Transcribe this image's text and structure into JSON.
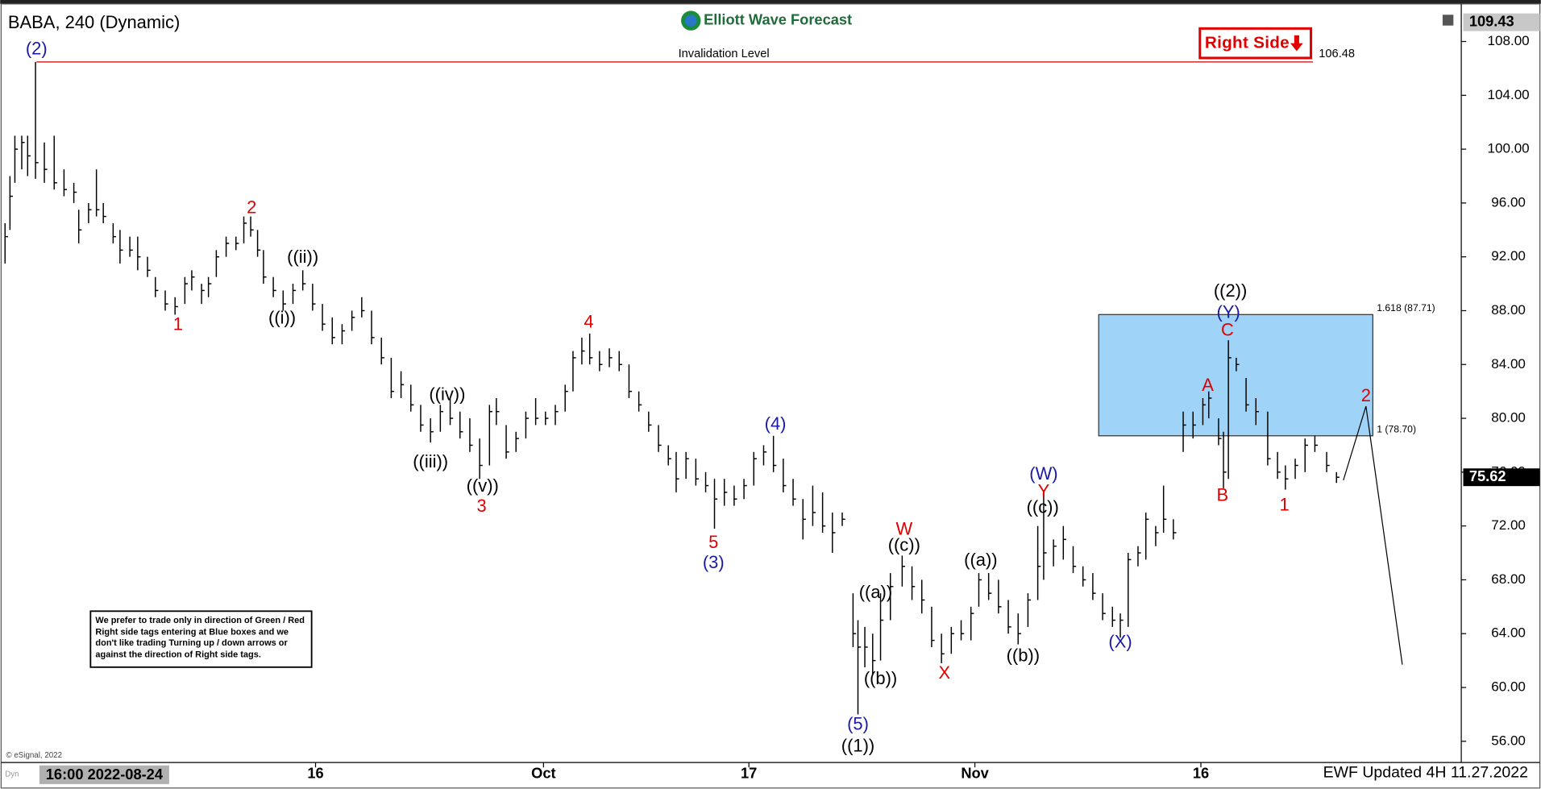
{
  "header": {
    "symbol_title": "BABA, 240 (Dynamic)",
    "brand": "Elliott Wave Forecast",
    "tag": "Right Side"
  },
  "chart_data": {
    "type": "ohlc",
    "color": "#000000",
    "xlim": [
      0,
      297.4
    ],
    "ylim": [
      54.5,
      110.5
    ],
    "xticks": [
      {
        "value": 64.2,
        "label": "16"
      },
      {
        "value": 110.6,
        "label": "Oct"
      },
      {
        "value": 152.4,
        "label": "17"
      },
      {
        "value": 198.4,
        "label": "Nov"
      },
      {
        "value": 244.4,
        "label": "16"
      }
    ],
    "yticks": [
      {
        "value": 56,
        "label": "56.00"
      },
      {
        "value": 60,
        "label": "60.00"
      },
      {
        "value": 64,
        "label": "64.00"
      },
      {
        "value": 68,
        "label": "68.00"
      },
      {
        "value": 72,
        "label": "72.00"
      },
      {
        "value": 76,
        "label": "76.00"
      },
      {
        "value": 80,
        "label": "80.00"
      },
      {
        "value": 84,
        "label": "84.00"
      },
      {
        "value": 88,
        "label": "88.00"
      },
      {
        "value": 92,
        "label": "92.00"
      },
      {
        "value": 96,
        "label": "96.00"
      },
      {
        "value": 100,
        "label": "100.00"
      },
      {
        "value": 104,
        "label": "104.00"
      },
      {
        "value": 108,
        "label": "108.00"
      }
    ],
    "x": [
      1,
      2,
      3,
      4.4,
      5.6,
      7.2,
      9,
      11,
      13,
      15,
      16,
      18,
      19.6,
      21,
      23,
      24.4,
      26.4,
      28,
      30,
      31.6,
      33.6,
      35.6,
      37.6,
      39,
      41,
      42.4,
      44,
      46,
      48,
      49.6,
      51,
      52.4,
      53.6,
      55.6,
      57.6,
      59.6,
      61.6,
      63.6,
      65.6,
      67.6,
      69.6,
      71.6,
      73.6,
      75.6,
      77.6,
      79.6,
      81.6,
      83.6,
      85.6,
      87.6,
      89.6,
      91.6,
      93.6,
      95.6,
      97.6,
      99.6,
      101,
      103,
      105,
      107,
      109,
      111,
      113,
      115,
      116.6,
      118.4,
      120,
      122,
      124,
      126,
      128,
      130,
      132,
      134,
      136,
      137.6,
      139.6,
      141.6,
      143.6,
      145.4,
      147.4,
      149.4,
      151.4,
      153.4,
      155.4,
      157.4,
      159.4,
      161.4,
      163.4,
      165.4,
      167.4,
      169.4,
      171.4,
      173.6,
      174.6,
      176,
      177.6,
      179.2,
      181.2,
      183.6,
      185.6,
      187.6,
      189.6,
      191.6,
      193.6,
      195.6,
      197.6,
      199.2,
      201.2,
      203.2,
      205.2,
      207.2,
      209.2,
      211.2,
      212.4,
      214.4,
      216.4,
      218.4,
      220.4,
      222.4,
      224.4,
      226.4,
      228,
      229.6,
      231.6,
      233.2,
      235.2,
      236.8,
      238.8,
      240.8,
      242.8,
      244.8,
      246,
      248,
      249,
      250,
      251.6,
      253.6,
      255.6,
      258,
      260,
      261.6,
      263.6,
      265.6,
      267.6,
      270,
      272
    ],
    "high": [
      94.5,
      98,
      101,
      101,
      101,
      106.48,
      100.5,
      101,
      98.5,
      97.5,
      95.5,
      96,
      98.5,
      96,
      94.5,
      94,
      93.5,
      93.5,
      92,
      90.5,
      89.5,
      89,
      90.5,
      91,
      90,
      90.5,
      92.5,
      93.5,
      93.5,
      95,
      95,
      94,
      92.5,
      90.5,
      89.5,
      90,
      91,
      90,
      88.5,
      87.5,
      87,
      88,
      89,
      88,
      86,
      84.5,
      83.5,
      82.5,
      81,
      80,
      81,
      81.5,
      80.5,
      80,
      78.5,
      81,
      81.5,
      79.5,
      79,
      80.5,
      81.5,
      80.5,
      81,
      82.5,
      85,
      86,
      86.3,
      85,
      85.2,
      85,
      84,
      82,
      80.5,
      79.5,
      78,
      77.5,
      77.5,
      77,
      76,
      75.5,
      75.5,
      75,
      75.5,
      77.5,
      78,
      78.7,
      77,
      75.5,
      74,
      75,
      74.5,
      73,
      73,
      67,
      65,
      64.5,
      64,
      67,
      68.5,
      69.8,
      69,
      68,
      66,
      64,
      64.5,
      65,
      66,
      68.5,
      68.5,
      68,
      66.5,
      65.5,
      67,
      72,
      74.5,
      71,
      72,
      70.5,
      69,
      68.5,
      67,
      66,
      65.5,
      70,
      70.5,
      73,
      72,
      75,
      72.5,
      80.5,
      80.5,
      81.5,
      82,
      80,
      79,
      85.8,
      84.5,
      83,
      81.5,
      80.5,
      77.5,
      76.5,
      77,
      78.5,
      78.7,
      77.5,
      76
    ],
    "low": [
      91.5,
      94,
      97.5,
      98.5,
      98,
      97.8,
      97.5,
      97,
      96.5,
      96,
      93,
      94.5,
      95,
      94.5,
      93,
      91.5,
      92,
      91,
      90.5,
      89,
      88,
      87.7,
      88.5,
      89.5,
      88.5,
      89,
      90.5,
      92,
      92.5,
      93,
      93.5,
      92,
      90,
      89,
      88,
      88.5,
      89.5,
      88,
      86.5,
      85.5,
      85.5,
      86.5,
      87.5,
      85.5,
      84,
      81.5,
      81.5,
      80.5,
      79,
      78.2,
      79,
      79.5,
      78.5,
      77.5,
      75.5,
      76.5,
      79.5,
      77,
      77.5,
      78.5,
      79.5,
      79.5,
      79.5,
      80.5,
      82,
      84,
      84,
      83.5,
      83.8,
      83.5,
      81.5,
      80.5,
      79,
      77.5,
      76.5,
      74.5,
      75.5,
      75,
      74.5,
      71.8,
      73.5,
      73.5,
      74,
      75,
      76.5,
      76,
      74.5,
      73.5,
      71,
      72,
      71.5,
      70,
      72,
      63,
      58,
      61.5,
      61,
      62,
      65,
      67.5,
      66.5,
      65.5,
      63,
      61.8,
      62.5,
      63.5,
      63.5,
      66,
      66.5,
      65.5,
      64,
      63.2,
      64.5,
      66.5,
      68,
      69,
      69.5,
      68.5,
      67.5,
      66.5,
      65,
      64.5,
      63.7,
      64.5,
      69,
      69.5,
      70.5,
      71.5,
      71,
      77.5,
      78.5,
      79.5,
      80,
      78,
      74.8,
      75.5,
      83.5,
      80.5,
      79.5,
      76.5,
      75.5,
      74.7,
      75.5,
      76,
      77.5,
      76,
      75.2
    ],
    "close": [
      93.5,
      96.5,
      100,
      100.5,
      99.5,
      99,
      98.5,
      97.5,
      97,
      96.8,
      94,
      95.5,
      95.5,
      95,
      93.5,
      92.5,
      92.5,
      92,
      91,
      89.5,
      88.5,
      88.3,
      90,
      90.5,
      89.5,
      90,
      92,
      93,
      93,
      94.5,
      94,
      92.5,
      90.5,
      89.5,
      88.5,
      89.5,
      90,
      88.5,
      87,
      86,
      86.5,
      87.5,
      88,
      86,
      84.5,
      82,
      82.5,
      81,
      79.5,
      79,
      80.5,
      80,
      79,
      78,
      76.5,
      80.5,
      80.5,
      77.5,
      78.5,
      80,
      80,
      80,
      80.5,
      82,
      84.5,
      85,
      84.5,
      84,
      84.5,
      84,
      82,
      81,
      79.5,
      78,
      77,
      75.5,
      77,
      75.5,
      75,
      74,
      74.5,
      74,
      75,
      77,
      77.5,
      76.5,
      75,
      74,
      72.5,
      73,
      72,
      71.5,
      72.5,
      64,
      63,
      63,
      62,
      65,
      67.5,
      69,
      67.5,
      66.5,
      63.5,
      62.5,
      64,
      64,
      65.5,
      68,
      67,
      66,
      64.5,
      64,
      66.5,
      69,
      70,
      70.5,
      71,
      69,
      68,
      67,
      65.5,
      65,
      65,
      69.5,
      70,
      72.5,
      71.5,
      72.5,
      71.5,
      79.5,
      79.5,
      81,
      81.5,
      78.5,
      76,
      84.5,
      84,
      81,
      80.5,
      77,
      76,
      75.5,
      76.5,
      78,
      78,
      76.5,
      75.62
    ],
    "last_price": 75.62,
    "top_price": 109.43,
    "invalidation": {
      "label": "Invalidation Level",
      "value": 106.48,
      "x": [
        7.4,
        267.2
      ],
      "color": "#cc0000"
    },
    "zone": {
      "x": [
        223.6,
        279.4
      ],
      "top": 87.71,
      "bottom": 78.7,
      "top_label": "1.618 (87.71)",
      "bottom_label": "1 (78.70)",
      "color": "#9fd3f7"
    },
    "projection": {
      "x": [
        273.4,
        278,
        285.4
      ],
      "y": [
        75.4,
        80.9,
        61.7
      ]
    },
    "annotations": [
      {
        "text": "(2)",
        "x": 7.4,
        "y": 107.4,
        "color": "#1a1aa6"
      },
      {
        "text": "1",
        "x": 36.2,
        "y": 86.9,
        "color": "#e00000"
      },
      {
        "text": "2",
        "x": 51.2,
        "y": 95.6,
        "color": "#e00000"
      },
      {
        "text": "((ii))",
        "x": 61.6,
        "y": 91.9,
        "color": "#000000"
      },
      {
        "text": "((i))",
        "x": 57.4,
        "y": 87.4,
        "color": "#000000"
      },
      {
        "text": "4",
        "x": 119.8,
        "y": 87.1,
        "color": "#e00000"
      },
      {
        "text": "((iv))",
        "x": 91,
        "y": 81.7,
        "color": "#000000"
      },
      {
        "text": "((iii))",
        "x": 87.6,
        "y": 76.7,
        "color": "#000000"
      },
      {
        "text": "((v))",
        "x": 98.2,
        "y": 74.9,
        "color": "#000000"
      },
      {
        "text": "3",
        "x": 98,
        "y": 73.4,
        "color": "#e00000"
      },
      {
        "text": "5",
        "x": 145.2,
        "y": 70.7,
        "color": "#e00000"
      },
      {
        "text": "(3)",
        "x": 145.2,
        "y": 69.2,
        "color": "#1a1aa6"
      },
      {
        "text": "(4)",
        "x": 157.8,
        "y": 79.5,
        "color": "#1a1aa6"
      },
      {
        "text": "W",
        "x": 184,
        "y": 71.7,
        "color": "#e00000"
      },
      {
        "text": "((c))",
        "x": 184,
        "y": 70.5,
        "color": "#000000"
      },
      {
        "text": "((a))",
        "x": 178.2,
        "y": 67,
        "color": "#000000"
      },
      {
        "text": "((b))",
        "x": 179.2,
        "y": 60.6,
        "color": "#000000"
      },
      {
        "text": "(5)",
        "x": 174.6,
        "y": 57.2,
        "color": "#1a1aa6"
      },
      {
        "text": "((1))",
        "x": 174.6,
        "y": 55.6,
        "color": "#000000"
      },
      {
        "text": "X",
        "x": 192.2,
        "y": 61,
        "color": "#e00000"
      },
      {
        "text": "((a))",
        "x": 199.6,
        "y": 69.4,
        "color": "#000000"
      },
      {
        "text": "((b))",
        "x": 208.2,
        "y": 62.3,
        "color": "#000000"
      },
      {
        "text": "(W)",
        "x": 212.4,
        "y": 75.8,
        "color": "#1a1aa6"
      },
      {
        "text": "Y",
        "x": 212.4,
        "y": 74.5,
        "color": "#e00000"
      },
      {
        "text": "((c))",
        "x": 212.2,
        "y": 73.3,
        "color": "#000000"
      },
      {
        "text": "(X)",
        "x": 228,
        "y": 63.3,
        "color": "#1a1aa6"
      },
      {
        "text": "((2))",
        "x": 250.4,
        "y": 89.4,
        "color": "#000000"
      },
      {
        "text": "(Y)",
        "x": 250,
        "y": 87.8,
        "color": "#1a1aa6"
      },
      {
        "text": "C",
        "x": 249.8,
        "y": 86.5,
        "color": "#e00000"
      },
      {
        "text": "A",
        "x": 245.8,
        "y": 82.4,
        "color": "#e00000"
      },
      {
        "text": "B",
        "x": 248.8,
        "y": 74.2,
        "color": "#e00000"
      },
      {
        "text": "1",
        "x": 261.4,
        "y": 73.5,
        "color": "#e00000"
      },
      {
        "text": "2",
        "x": 278,
        "y": 81.6,
        "color": "#e00000"
      }
    ]
  },
  "note": "We prefer to trade only in direction of Green / Red Right side tags entering at Blue boxes and we don't like trading Turning up / down arrows or against the direction of Right side tags.",
  "footer": {
    "updated": "EWF Updated 4H 11.27.2022",
    "source": "© eSignal, 2022",
    "cursor_time": "16:00 2022-08-24",
    "mode": "Dyn"
  }
}
